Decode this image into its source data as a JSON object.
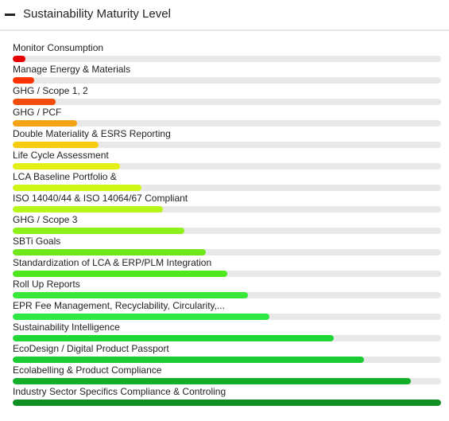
{
  "panel": {
    "title": "Sustainability Maturity Level",
    "collapse_icon": "minus-icon"
  },
  "levels": [
    {
      "label": "Monitor Consumption",
      "progress": 0.03,
      "color": "#e60000"
    },
    {
      "label": "Manage Energy & Materials",
      "progress": 0.05,
      "color": "#ff3300"
    },
    {
      "label": "GHG / Scope 1, 2",
      "progress": 0.1,
      "color": "#f24c0a"
    },
    {
      "label": "GHG / PCF",
      "progress": 0.15,
      "color": "#f5a316"
    },
    {
      "label": "Double Materiality & ESRS Reporting",
      "progress": 0.2,
      "color": "#f5cc0e"
    },
    {
      "label": "Life Cycle Assessment",
      "progress": 0.25,
      "color": "#e3f012"
    },
    {
      "label": "LCA Baseline Portfolio &",
      "progress": 0.3,
      "color": "#cef516"
    },
    {
      "label": "ISO 14040/44 & ISO 14064/67 Compliant",
      "progress": 0.35,
      "color": "#b8f51a"
    },
    {
      "label": "GHG / Scope 3",
      "progress": 0.4,
      "color": "#8ef01a"
    },
    {
      "label": "SBTi Goals",
      "progress": 0.45,
      "color": "#6ee81a"
    },
    {
      "label": "Standardization of LCA & ERP/PLM Integration",
      "progress": 0.5,
      "color": "#4ee81e"
    },
    {
      "label": "Roll Up Reports",
      "progress": 0.55,
      "color": "#3ae83a"
    },
    {
      "label": "EPR Fee Management, Recyclability, Circularity,...",
      "progress": 0.6,
      "color": "#2ee846"
    },
    {
      "label": "Sustainability Intelligence",
      "progress": 0.75,
      "color": "#1fd838"
    },
    {
      "label": "EcoDesign / Digital Product Passport",
      "progress": 0.82,
      "color": "#1acb33"
    },
    {
      "label": "Ecolabelling & Product Compliance",
      "progress": 0.93,
      "color": "#12b02a"
    },
    {
      "label": "Industry Sector Specifics Compliance & Controling",
      "progress": 1.0,
      "color": "#0f8f24"
    }
  ]
}
